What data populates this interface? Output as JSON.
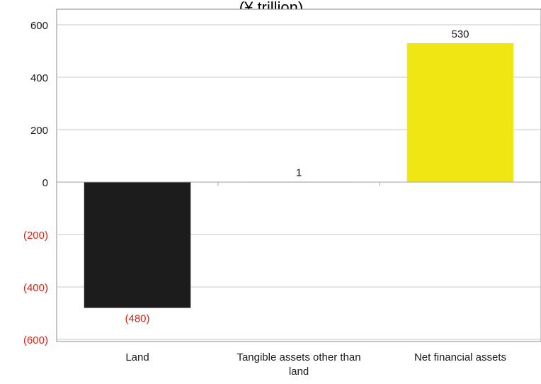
{
  "chart_data": {
    "type": "bar",
    "title": "(¥ trillion)",
    "categories": [
      "Land",
      "Tangible assets other than land",
      "Net financial assets"
    ],
    "category_lines": [
      [
        "Land"
      ],
      [
        "Tangible assets other than",
        "land"
      ],
      [
        "Net financial assets"
      ]
    ],
    "values": [
      -480,
      1,
      530
    ],
    "data_labels": [
      "(480)",
      "1",
      "530"
    ],
    "bar_colors": [
      "#1c1c1c",
      "#c8c8c8",
      "#f0e614"
    ],
    "ylim": [
      -600,
      600
    ],
    "y_ticks": [
      600,
      400,
      200,
      0,
      -200,
      -400,
      -600
    ],
    "y_tick_labels": [
      "600",
      "400",
      "200",
      "0",
      "(200)",
      "(400)",
      "(600)"
    ],
    "positive_label_color": "#1a1a1a",
    "negative_label_color": "#e02010",
    "grid": true,
    "legend": "none",
    "xlabel": "",
    "ylabel": ""
  }
}
